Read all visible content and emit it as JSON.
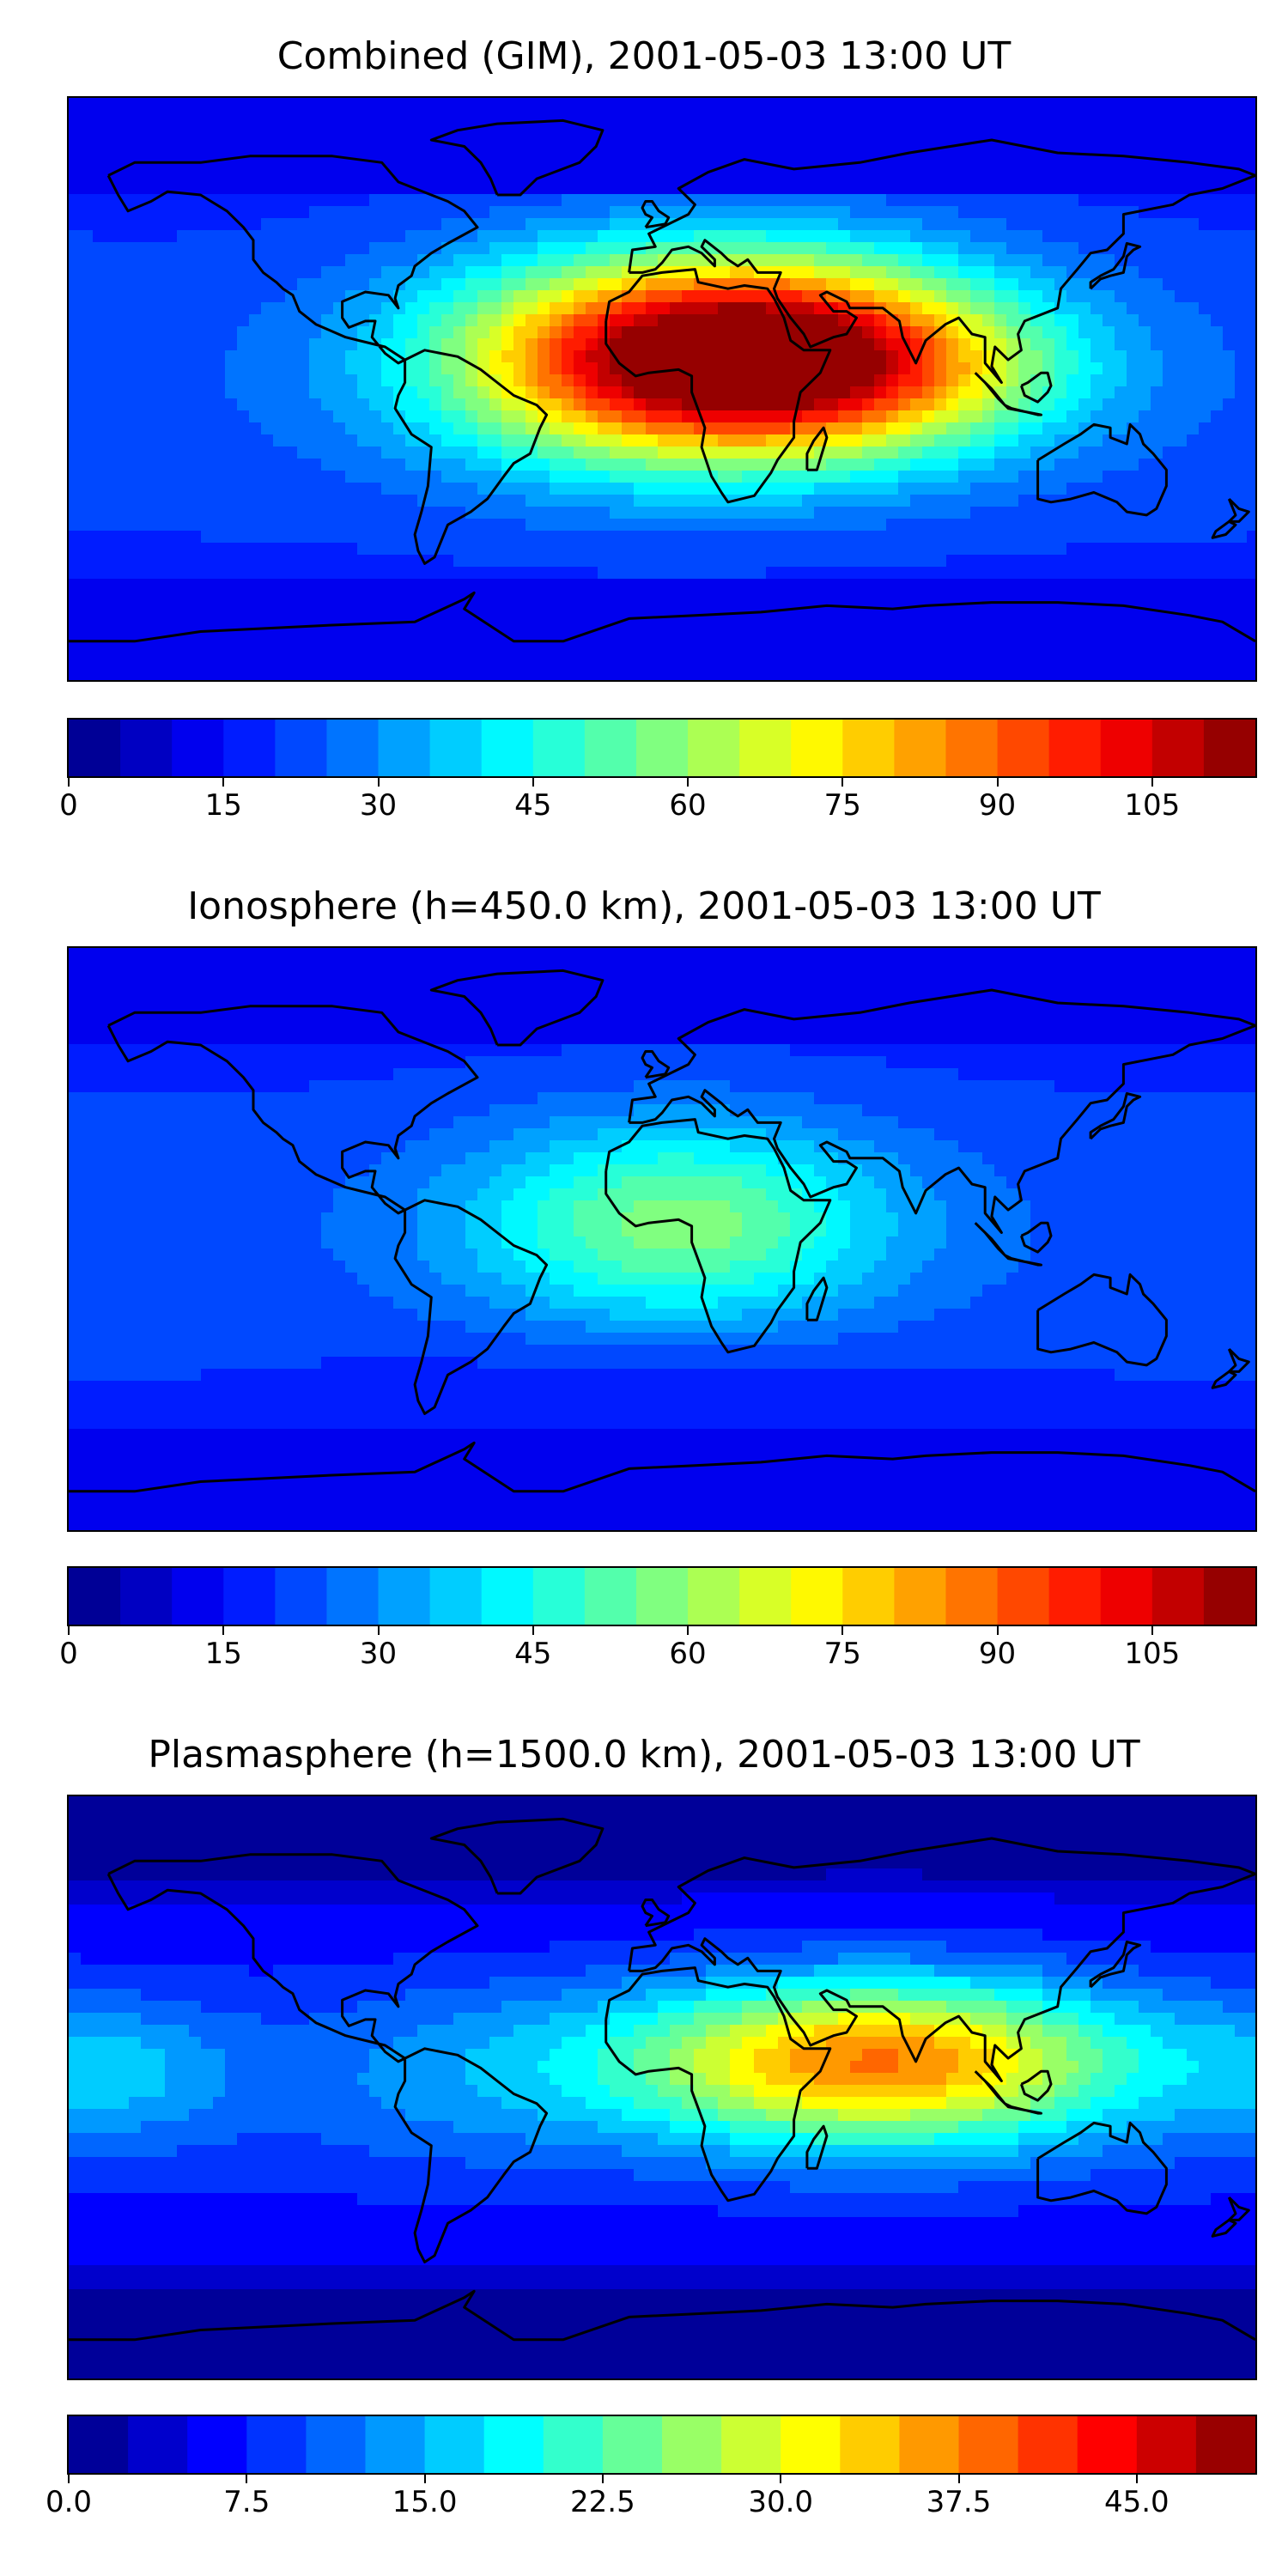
{
  "panels": [
    {
      "title": "Combined (GIM), 2001-05-03 13:00 UT",
      "colorbar": {
        "min": 0,
        "max": 115,
        "levels": 23,
        "ticks": [
          "0",
          "15",
          "30",
          "45",
          "60",
          "75",
          "90",
          "105"
        ],
        "tick_values": [
          0,
          15,
          30,
          45,
          60,
          75,
          90,
          105
        ]
      },
      "features": [
        {
          "lon": 20,
          "lat": 10,
          "value": 112,
          "sx": 55,
          "sy": 22
        },
        {
          "lon": 45,
          "lat": 8,
          "value": 40,
          "sx": 35,
          "sy": 20
        },
        {
          "lon": -20,
          "lat": 5,
          "value": 30,
          "sx": 40,
          "sy": 25
        },
        {
          "lon": 95,
          "lat": 5,
          "value": 30,
          "sx": 30,
          "sy": 15
        },
        {
          "lon": 0,
          "lat": -45,
          "value": 20,
          "sx": 60,
          "sy": 12
        }
      ],
      "base": 20
    },
    {
      "title": "Ionosphere  (h=450.0 km), 2001-05-03 13:00 UT",
      "colorbar": {
        "min": 0,
        "max": 115,
        "levels": 23,
        "ticks": [
          "0",
          "15",
          "30",
          "45",
          "60",
          "75",
          "90",
          "105"
        ],
        "tick_values": [
          0,
          15,
          30,
          45,
          60,
          75,
          90,
          105
        ]
      },
      "features": [
        {
          "lon": 5,
          "lat": 5,
          "value": 55,
          "sx": 45,
          "sy": 22
        },
        {
          "lon": -35,
          "lat": -5,
          "value": 20,
          "sx": 35,
          "sy": 25
        },
        {
          "lon": 0,
          "lat": -45,
          "value": 15,
          "sx": 60,
          "sy": 12
        }
      ],
      "base": 20
    },
    {
      "title": "Plasmasphere (h=1500.0 km), 2001-05-03 13:00 UT",
      "colorbar": {
        "min": 0,
        "max": 50,
        "levels": 20,
        "ticks": [
          "0.0",
          "7.5",
          "15.0",
          "22.5",
          "30.0",
          "37.5",
          "45.0"
        ],
        "tick_values": [
          0,
          7.5,
          15,
          22.5,
          30,
          37.5,
          45
        ]
      },
      "features": [
        {
          "lon": 65,
          "lat": 8,
          "value": 35,
          "sx": 55,
          "sy": 18
        },
        {
          "lon": -165,
          "lat": 5,
          "value": 12,
          "sx": 25,
          "sy": 15
        },
        {
          "lon": -60,
          "lat": 5,
          "value": 10,
          "sx": 40,
          "sy": 20
        }
      ],
      "base": 6
    }
  ],
  "colormap": "jet"
}
